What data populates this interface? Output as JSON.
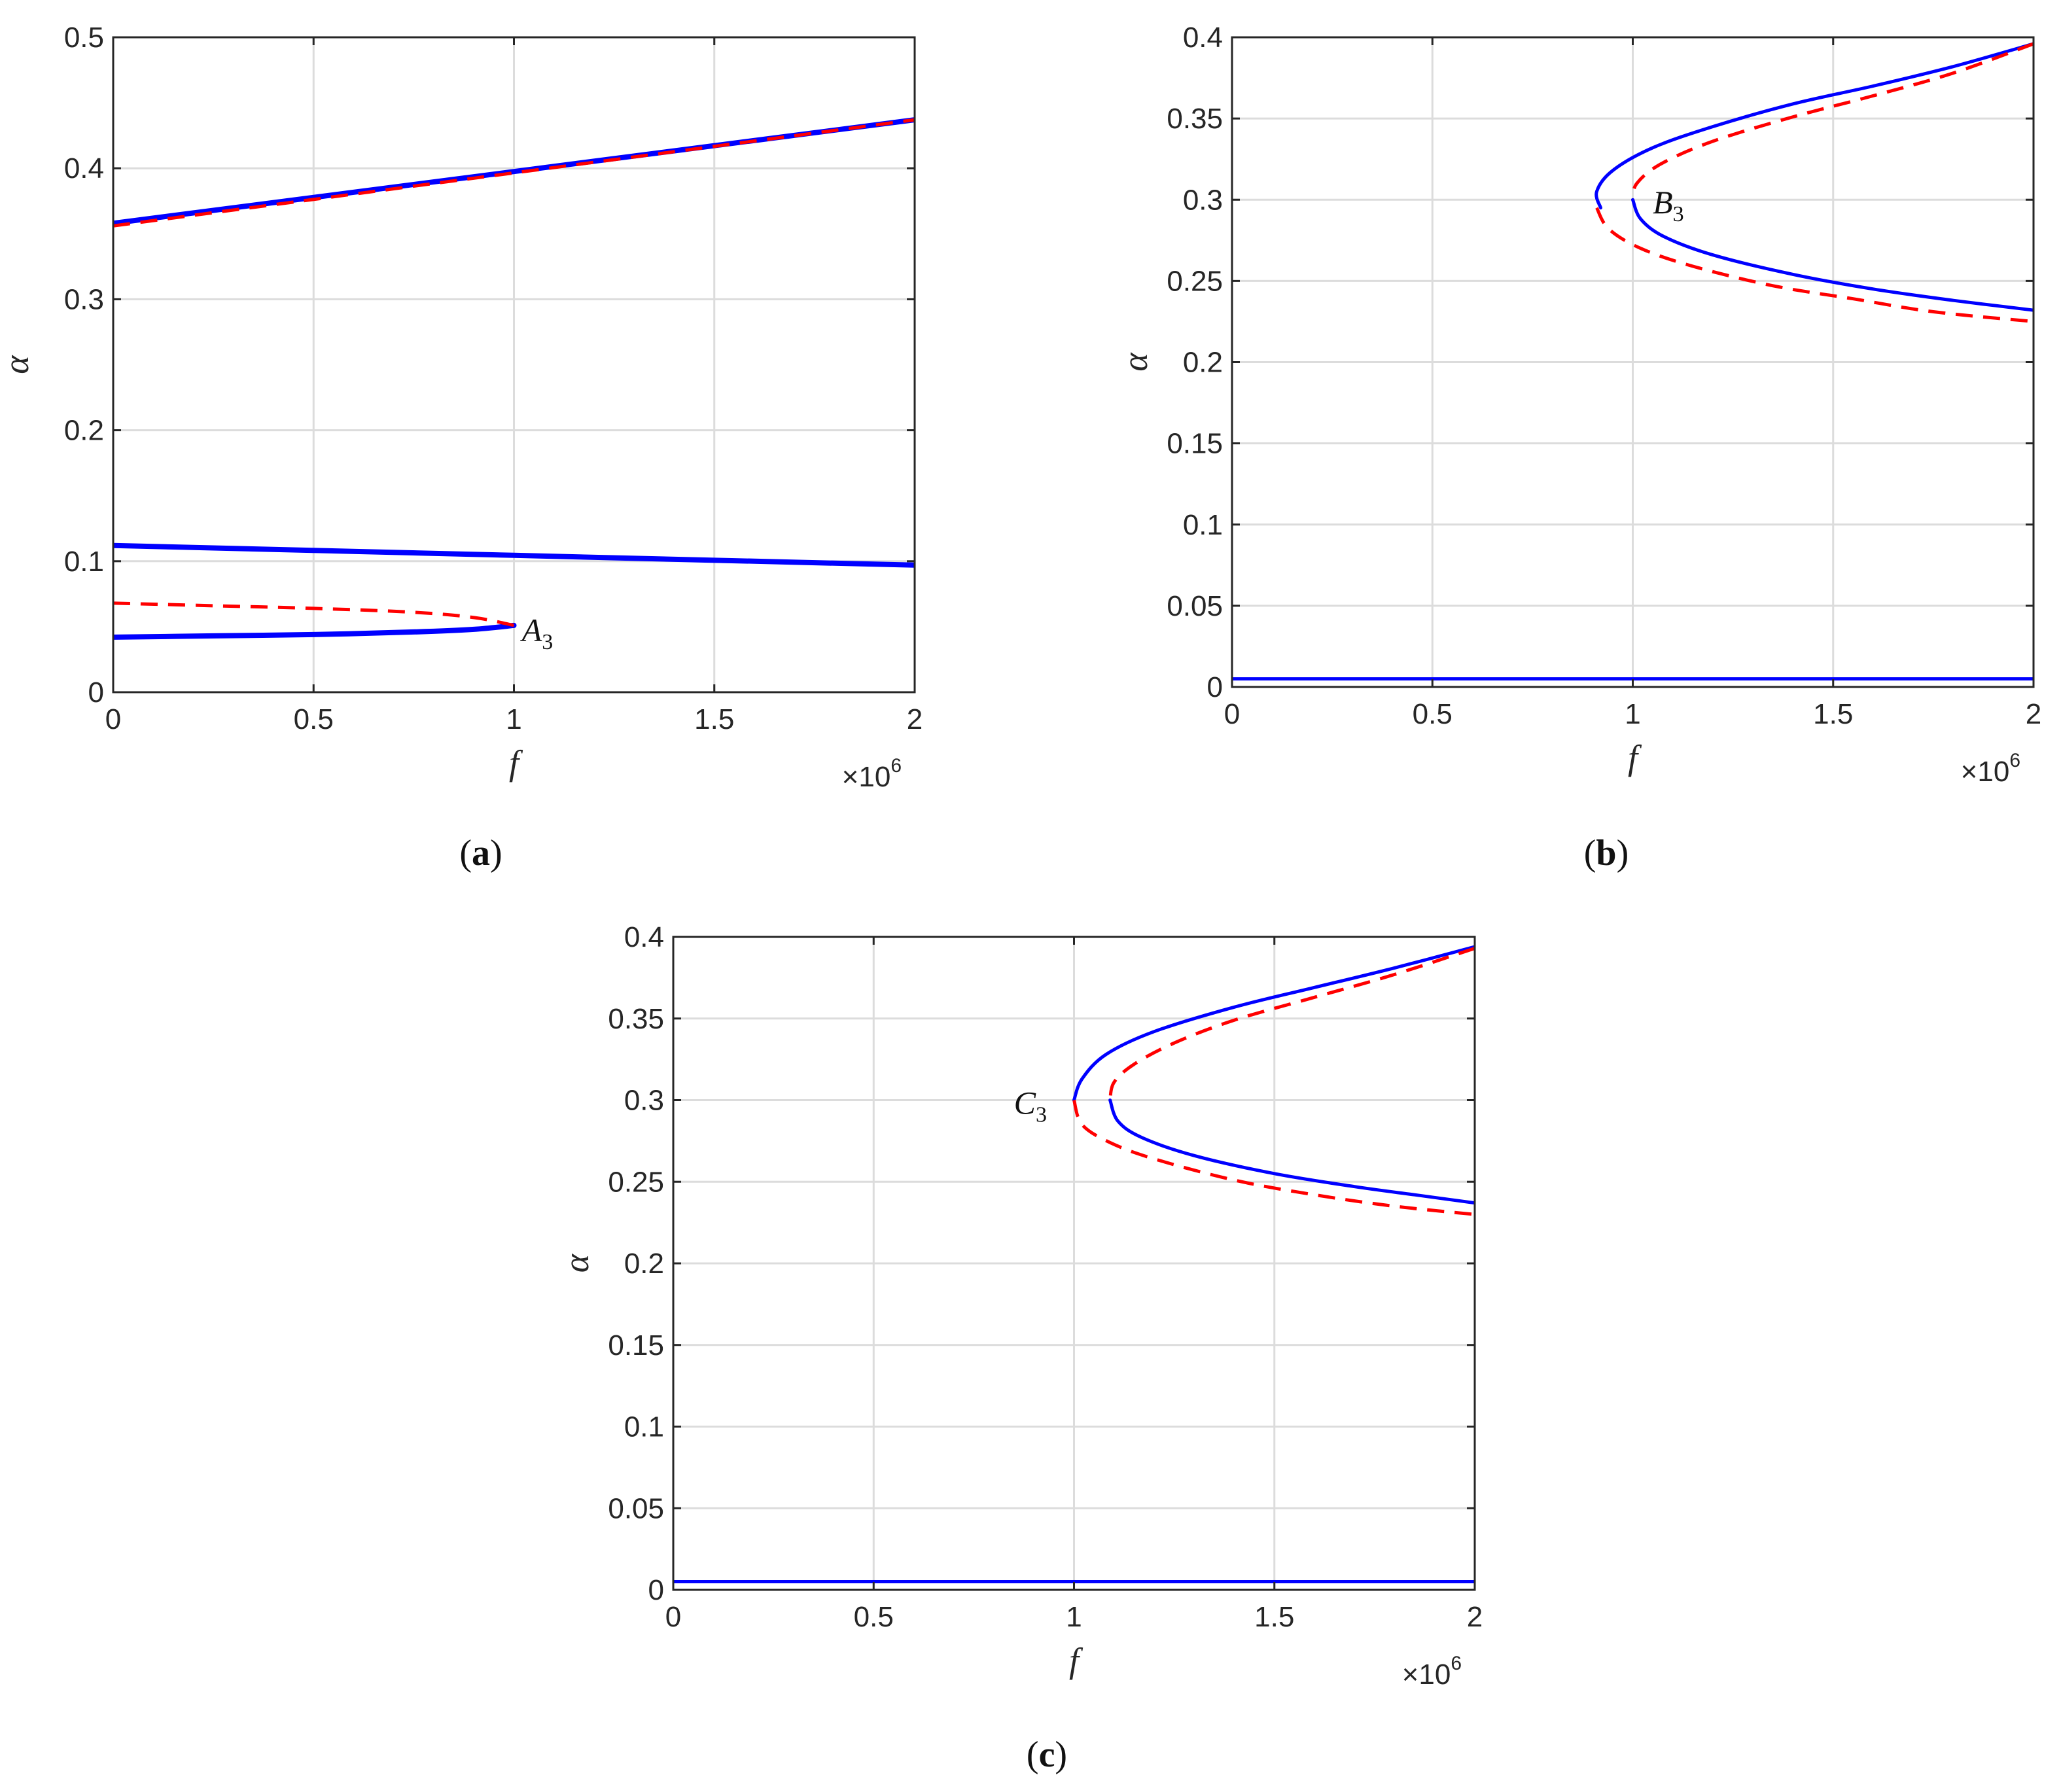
{
  "chart_data": [
    {
      "type": "line",
      "caption_label": "a",
      "xlabel": "f",
      "ylabel": "α",
      "x_multiplier": "×10",
      "x_multiplier_exp": "6",
      "xlim": [
        0,
        2
      ],
      "ylim": [
        0,
        0.5
      ],
      "xticks": [
        "0",
        "0.5",
        "1",
        "1.5",
        "2"
      ],
      "yticks": [
        "0",
        "0.1",
        "0.2",
        "0.3",
        "0.4",
        "0.5"
      ],
      "grid": true,
      "annotations": [
        {
          "base": "A",
          "sub": "3",
          "x": 1.02,
          "y": 0.047
        }
      ],
      "series": [
        {
          "style": "solid",
          "color": "#0000ff",
          "width": 8,
          "x": [
            0,
            2
          ],
          "y": [
            0.358,
            0.437
          ]
        },
        {
          "style": "dashed",
          "color": "#ff0000",
          "width": 5,
          "x": [
            0,
            2
          ],
          "y": [
            0.356,
            0.437
          ]
        },
        {
          "style": "solid",
          "color": "#0000ff",
          "width": 8,
          "x": [
            0,
            2
          ],
          "y": [
            0.112,
            0.097
          ]
        },
        {
          "style": "solid",
          "color": "#0000ff",
          "width": 8,
          "x": [
            0,
            0.25,
            0.5,
            0.75,
            0.9,
            1.0
          ],
          "y": [
            0.042,
            0.043,
            0.044,
            0.046,
            0.048,
            0.051
          ]
        },
        {
          "style": "dashed",
          "color": "#ff0000",
          "width": 5,
          "x": [
            0,
            0.25,
            0.5,
            0.75,
            0.9,
            1.0
          ],
          "y": [
            0.068,
            0.066,
            0.064,
            0.061,
            0.057,
            0.051
          ]
        }
      ]
    },
    {
      "type": "line",
      "caption_label": "b",
      "xlabel": "f",
      "ylabel": "α",
      "x_multiplier": "×10",
      "x_multiplier_exp": "6",
      "xlim": [
        0,
        2
      ],
      "ylim": [
        0,
        0.4
      ],
      "xticks": [
        "0",
        "0.5",
        "1",
        "1.5",
        "2"
      ],
      "yticks": [
        "0",
        "0.05",
        "0.1",
        "0.15",
        "0.2",
        "0.25",
        "0.3",
        "0.35",
        "0.4"
      ],
      "grid": true,
      "annotations": [
        {
          "base": "B",
          "sub": "3",
          "x": 1.05,
          "y": 0.298
        }
      ],
      "series": [
        {
          "style": "solid",
          "color": "#0000ff",
          "width": 5,
          "x": [
            2,
            1.8,
            1.6,
            1.4,
            1.2,
            1.05,
            0.95,
            0.91,
            0.92
          ],
          "y": [
            0.396,
            0.382,
            0.37,
            0.359,
            0.345,
            0.332,
            0.318,
            0.305,
            0.295
          ]
        },
        {
          "style": "dashed",
          "color": "#ff0000",
          "width": 5,
          "x": [
            2,
            1.8,
            1.6,
            1.4,
            1.2,
            1.07,
            1.01,
            1.0
          ],
          "y": [
            0.396,
            0.378,
            0.364,
            0.351,
            0.336,
            0.322,
            0.31,
            0.3
          ]
        },
        {
          "style": "solid",
          "color": "#0000ff",
          "width": 5,
          "x": [
            1.0,
            1.02,
            1.08,
            1.2,
            1.4,
            1.6,
            1.8,
            2.0
          ],
          "y": [
            0.3,
            0.288,
            0.277,
            0.266,
            0.254,
            0.245,
            0.238,
            0.232
          ]
        },
        {
          "style": "dashed",
          "color": "#ff0000",
          "width": 5,
          "x": [
            0.91,
            0.94,
            1.02,
            1.15,
            1.35,
            1.55,
            1.75,
            2.0
          ],
          "y": [
            0.295,
            0.282,
            0.27,
            0.259,
            0.247,
            0.239,
            0.231,
            0.225
          ]
        },
        {
          "style": "solid",
          "color": "#0000ff",
          "width": 5,
          "x": [
            0,
            2
          ],
          "y": [
            0.005,
            0.005
          ]
        }
      ]
    },
    {
      "type": "line",
      "caption_label": "c",
      "xlabel": "f",
      "ylabel": "α",
      "x_multiplier": "×10",
      "x_multiplier_exp": "6",
      "xlim": [
        0,
        2
      ],
      "ylim": [
        0,
        0.4
      ],
      "xticks": [
        "0",
        "0.5",
        "1",
        "1.5",
        "2"
      ],
      "yticks": [
        "0",
        "0.05",
        "0.1",
        "0.15",
        "0.2",
        "0.25",
        "0.3",
        "0.35",
        "0.4"
      ],
      "grid": true,
      "annotations": [
        {
          "base": "C",
          "sub": "3",
          "x": 0.85,
          "y": 0.298
        }
      ],
      "series": [
        {
          "style": "solid",
          "color": "#0000ff",
          "width": 5,
          "x": [
            2,
            1.8,
            1.6,
            1.4,
            1.2,
            1.08,
            1.02,
            1.0
          ],
          "y": [
            0.394,
            0.381,
            0.369,
            0.357,
            0.342,
            0.328,
            0.313,
            0.3
          ]
        },
        {
          "style": "dashed",
          "color": "#ff0000",
          "width": 5,
          "x": [
            2,
            1.8,
            1.6,
            1.4,
            1.25,
            1.15,
            1.1,
            1.09
          ],
          "y": [
            0.393,
            0.377,
            0.363,
            0.349,
            0.335,
            0.322,
            0.311,
            0.3
          ]
        },
        {
          "style": "solid",
          "color": "#0000ff",
          "width": 5,
          "x": [
            1.09,
            1.11,
            1.17,
            1.3,
            1.5,
            1.7,
            1.85,
            2.0
          ],
          "y": [
            0.3,
            0.287,
            0.277,
            0.266,
            0.255,
            0.247,
            0.242,
            0.237
          ]
        },
        {
          "style": "dashed",
          "color": "#ff0000",
          "width": 5,
          "x": [
            1.0,
            1.02,
            1.09,
            1.2,
            1.4,
            1.6,
            1.8,
            2.0
          ],
          "y": [
            0.3,
            0.285,
            0.274,
            0.264,
            0.251,
            0.242,
            0.235,
            0.23
          ]
        },
        {
          "style": "solid",
          "color": "#0000ff",
          "width": 5,
          "x": [
            0,
            2
          ],
          "y": [
            0.005,
            0.005
          ]
        }
      ]
    }
  ]
}
